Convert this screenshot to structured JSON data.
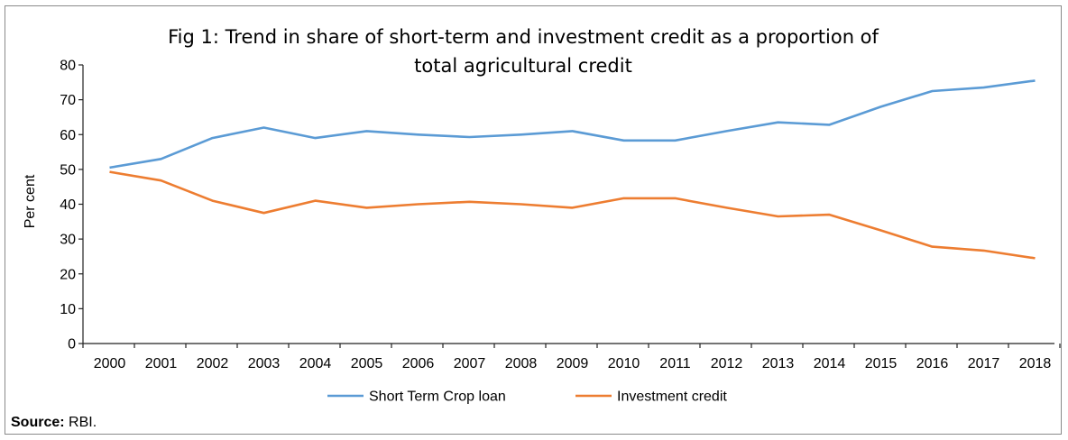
{
  "chart_data": {
    "type": "line",
    "title_line1": "Fig 1: Trend in share of short-term and investment credit as a proportion of",
    "title_line2": "total agricultural credit",
    "xlabel": "",
    "ylabel": "Per cent",
    "ylim": [
      0,
      80
    ],
    "yticks": [
      0,
      10,
      20,
      30,
      40,
      50,
      60,
      70,
      80
    ],
    "categories": [
      "2000",
      "2001",
      "2002",
      "2003",
      "2004",
      "2005",
      "2006",
      "2007",
      "2008",
      "2009",
      "2010",
      "2011",
      "2012",
      "2013",
      "2014",
      "2015",
      "2016",
      "2017",
      "2018"
    ],
    "series": [
      {
        "name": "Short Term Crop loan",
        "color": "#5b9bd5",
        "values": [
          50.5,
          53,
          59,
          62,
          59,
          61,
          60,
          59.3,
          60,
          61,
          58.3,
          58.3,
          61,
          63.5,
          62.8,
          68,
          72.5,
          73.5,
          75.5
        ]
      },
      {
        "name": "Investment credit",
        "color": "#ed7d31",
        "values": [
          49.3,
          46.8,
          41,
          37.5,
          41,
          39,
          40,
          40.7,
          40,
          39,
          41.7,
          41.7,
          39,
          36.5,
          37,
          32.5,
          27.8,
          26.7,
          24.5
        ]
      }
    ],
    "grid": false,
    "legend_position": "bottom-center"
  },
  "source": {
    "label": "Source:",
    "value": " RBI."
  }
}
